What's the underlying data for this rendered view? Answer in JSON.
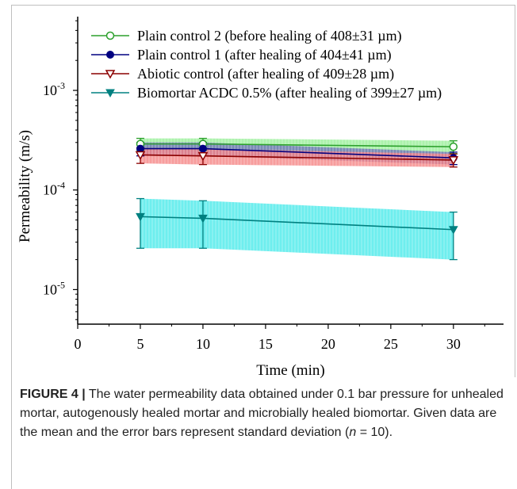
{
  "chart_data": {
    "type": "line",
    "xlabel": "Time (min)",
    "ylabel": "Permeability (m/s)",
    "x_ticks": [
      0,
      5,
      10,
      15,
      20,
      25,
      30
    ],
    "y_ticks": [
      {
        "value": 1e-05,
        "base": "10",
        "exp": "-5"
      },
      {
        "value": 0.0001,
        "base": "10",
        "exp": "-4"
      },
      {
        "value": 0.001,
        "base": "10",
        "exp": "-3"
      }
    ],
    "xlim": [
      0,
      34
    ],
    "ylim": [
      4.5e-06,
      0.0055
    ],
    "yscale": "log",
    "legend_position": "top-left",
    "series": [
      {
        "name": "Plain control 2 (before healing of 408±31 µm)",
        "color": "#2ca02c",
        "band_color": "#90ee90",
        "marker": "circle-open",
        "x": [
          5,
          10,
          30
        ],
        "y": [
          0.00029,
          0.00029,
          0.000272
        ],
        "err": [
          4e-05,
          4e-05,
          4e-05
        ]
      },
      {
        "name": "Plain control 1 (after healing of 404±41 µm)",
        "color": "#000080",
        "band_color": "#6a6ab8",
        "marker": "circle-filled",
        "x": [
          5,
          10,
          30
        ],
        "y": [
          0.00026,
          0.00026,
          0.00021
        ],
        "err": [
          4e-05,
          4e-05,
          3e-05
        ]
      },
      {
        "name": "Abiotic control (after healing of 409±28 µm)",
        "color": "#8b0000",
        "band_color": "#f47c7c",
        "marker": "triangle-down-open",
        "x": [
          5,
          10,
          30
        ],
        "y": [
          0.000225,
          0.00022,
          0.0002
        ],
        "err": [
          4e-05,
          4e-05,
          3e-05
        ]
      },
      {
        "name": "Biomortar ACDC 0.5% (after healing of 399±27 µm)",
        "color": "#008080",
        "band_color": "#3ee8e8",
        "marker": "triangle-down-filled",
        "x": [
          5,
          10,
          30
        ],
        "y": [
          5.4e-05,
          5.2e-05,
          4e-05
        ],
        "err": [
          2.8e-05,
          2.6e-05,
          2e-05
        ]
      }
    ]
  },
  "caption": {
    "label": "FIGURE 4 |",
    "text_before": " The water permeability data obtained under 0.1 bar pressure for unhealed mortar, autogenously healed mortar and microbially healed biomortar. Given data are the mean and the error bars represent standard deviation (",
    "n_symbol": "n",
    "text_after": " = 10)."
  }
}
